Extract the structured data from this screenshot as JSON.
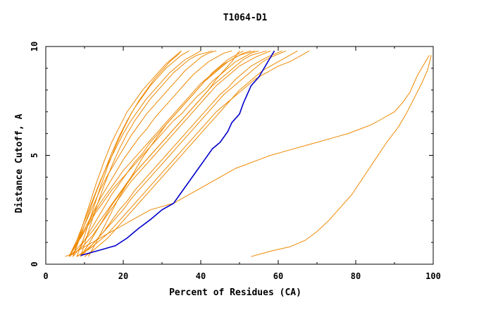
{
  "chart_data": {
    "type": "line",
    "title": "T1064-D1",
    "xlabel": "Percent of Residues (CA)",
    "ylabel": "Distance Cutoff, A",
    "xlim": [
      0,
      100
    ],
    "ylim": [
      0,
      10
    ],
    "xticks": [
      "0",
      "20",
      "40",
      "60",
      "80",
      "100"
    ],
    "yticks": [
      "0",
      "5",
      "10"
    ],
    "grid": false,
    "colors": {
      "highlight": "#0000cc",
      "models": "#ee8800"
    },
    "highlight_series": {
      "x": [
        9,
        12,
        15,
        18,
        21,
        24,
        27,
        30,
        33,
        35,
        37,
        39,
        41,
        43,
        45,
        47,
        48,
        50,
        51,
        52,
        53,
        55,
        56,
        57,
        58,
        59
      ],
      "y": [
        0.4,
        0.55,
        0.7,
        0.85,
        1.2,
        1.65,
        2.05,
        2.5,
        2.8,
        3.3,
        3.8,
        4.3,
        4.8,
        5.3,
        5.6,
        6.1,
        6.5,
        6.9,
        7.4,
        7.8,
        8.2,
        8.6,
        8.9,
        9.2,
        9.5,
        9.8
      ]
    },
    "model_series": [
      {
        "x": [
          6,
          8,
          10,
          12,
          14,
          16,
          18,
          20,
          22,
          24,
          26,
          28,
          30,
          32,
          34,
          36,
          38,
          40,
          42,
          44,
          46,
          48,
          50,
          52,
          54,
          56,
          58
        ],
        "y": [
          0.35,
          0.6,
          0.9,
          1.3,
          1.8,
          2.3,
          2.8,
          3.3,
          3.8,
          4.2,
          4.6,
          5.0,
          5.4,
          5.8,
          6.2,
          6.6,
          7.0,
          7.4,
          7.8,
          8.2,
          8.5,
          8.8,
          9.1,
          9.3,
          9.5,
          9.65,
          9.8
        ]
      },
      {
        "x": [
          6,
          7,
          9,
          11,
          13,
          15,
          17,
          19,
          21,
          23,
          25,
          27,
          29,
          31,
          33,
          35,
          37,
          39,
          41,
          43,
          45,
          47,
          49,
          51,
          53,
          55
        ],
        "y": [
          0.35,
          0.7,
          1.2,
          1.8,
          2.4,
          2.9,
          3.4,
          3.8,
          4.2,
          4.6,
          5.0,
          5.4,
          5.8,
          6.2,
          6.6,
          6.9,
          7.3,
          7.7,
          8.0,
          8.4,
          8.7,
          9.0,
          9.3,
          9.5,
          9.7,
          9.8
        ]
      },
      {
        "x": [
          7,
          9,
          11,
          13,
          15,
          17,
          19,
          21,
          23,
          25,
          27,
          29,
          31,
          33,
          35,
          37,
          39,
          41,
          43,
          45,
          47,
          49,
          51
        ],
        "y": [
          0.35,
          0.8,
          1.4,
          2.0,
          2.6,
          3.2,
          3.7,
          4.2,
          4.7,
          5.1,
          5.6,
          6.0,
          6.4,
          6.8,
          7.2,
          7.6,
          8.0,
          8.4,
          8.8,
          9.1,
          9.4,
          9.6,
          9.8
        ]
      },
      {
        "x": [
          6,
          8,
          10,
          12,
          14,
          16,
          18,
          20,
          22,
          24,
          26,
          28,
          30,
          32,
          34,
          36,
          38,
          40,
          42,
          44,
          46,
          48
        ],
        "y": [
          0.35,
          0.9,
          1.6,
          2.3,
          3.0,
          3.6,
          4.2,
          4.8,
          5.3,
          5.8,
          6.2,
          6.7,
          7.1,
          7.5,
          7.9,
          8.3,
          8.7,
          9.0,
          9.3,
          9.5,
          9.7,
          9.8
        ]
      },
      {
        "x": [
          6,
          8,
          10,
          12,
          14,
          16,
          18,
          20,
          22,
          24,
          26,
          28,
          30,
          32,
          34,
          36,
          38,
          40,
          42,
          44
        ],
        "y": [
          0.35,
          1.0,
          1.8,
          2.6,
          3.4,
          4.1,
          4.7,
          5.3,
          5.9,
          6.4,
          6.9,
          7.3,
          7.7,
          8.1,
          8.5,
          8.9,
          9.2,
          9.5,
          9.7,
          9.8
        ]
      },
      {
        "x": [
          6,
          8,
          10,
          12,
          14,
          16,
          18,
          20,
          22,
          24,
          26,
          28,
          30,
          32,
          34,
          36,
          38,
          40
        ],
        "y": [
          0.35,
          1.1,
          2.0,
          2.9,
          3.8,
          4.6,
          5.3,
          6.0,
          6.6,
          7.1,
          7.6,
          8.0,
          8.4,
          8.8,
          9.1,
          9.4,
          9.6,
          9.8
        ]
      },
      {
        "x": [
          7,
          9,
          11,
          13,
          15,
          17,
          19,
          21,
          23,
          25,
          27,
          29,
          31,
          33,
          35,
          37
        ],
        "y": [
          0.35,
          1.3,
          2.3,
          3.3,
          4.2,
          5.1,
          5.9,
          6.6,
          7.2,
          7.7,
          8.2,
          8.6,
          9.0,
          9.3,
          9.6,
          9.8
        ]
      },
      {
        "x": [
          8,
          10,
          12,
          14,
          16,
          18,
          20,
          22,
          24,
          26,
          28,
          30,
          32,
          34,
          35
        ],
        "y": [
          0.35,
          1.3,
          2.4,
          3.5,
          4.5,
          5.4,
          6.2,
          6.9,
          7.5,
          8.0,
          8.5,
          8.9,
          9.3,
          9.6,
          9.8
        ]
      },
      {
        "x": [
          7,
          9,
          11,
          13,
          15,
          17,
          19,
          21,
          23,
          25,
          27,
          29,
          31,
          33,
          35
        ],
        "y": [
          0.35,
          1.5,
          2.6,
          3.7,
          4.7,
          5.6,
          6.3,
          7.0,
          7.5,
          8.0,
          8.4,
          8.8,
          9.2,
          9.5,
          9.8
        ]
      },
      {
        "x": [
          6,
          8,
          10,
          12,
          14,
          16,
          18,
          20,
          22,
          24,
          26,
          28,
          30,
          32,
          34,
          36,
          38,
          40,
          42,
          44,
          46,
          48,
          50
        ],
        "y": [
          0.35,
          0.7,
          1.1,
          1.5,
          2.0,
          2.5,
          3.0,
          3.5,
          4.0,
          4.4,
          4.8,
          5.2,
          5.6,
          6.0,
          6.4,
          6.8,
          7.2,
          7.6,
          8.0,
          8.5,
          8.9,
          9.3,
          9.8
        ]
      },
      {
        "x": [
          9,
          11,
          13,
          15,
          17,
          19,
          21,
          23,
          25,
          27,
          29,
          31,
          33,
          35,
          37,
          39,
          41,
          43,
          45,
          47,
          49,
          51,
          53,
          55,
          57,
          59,
          61
        ],
        "y": [
          0.35,
          0.7,
          1.1,
          1.5,
          2.0,
          2.5,
          2.9,
          3.4,
          3.8,
          4.2,
          4.6,
          5.0,
          5.4,
          5.8,
          6.2,
          6.6,
          7.0,
          7.4,
          7.8,
          8.1,
          8.5,
          8.8,
          9.1,
          9.3,
          9.5,
          9.65,
          9.8
        ]
      },
      {
        "x": [
          8,
          10,
          12,
          14,
          16,
          18,
          20,
          22,
          24,
          26,
          28,
          30,
          32,
          34,
          36,
          38,
          40,
          42,
          44,
          46,
          48,
          50,
          52,
          54,
          56,
          58,
          60,
          62
        ],
        "y": [
          0.35,
          0.6,
          0.9,
          1.3,
          1.7,
          2.1,
          2.5,
          3.0,
          3.4,
          3.8,
          4.2,
          4.6,
          5.0,
          5.4,
          5.8,
          6.2,
          6.6,
          7.0,
          7.4,
          7.8,
          8.1,
          8.4,
          8.7,
          9.0,
          9.3,
          9.5,
          9.65,
          9.8
        ]
      },
      {
        "x": [
          10,
          12,
          14,
          16,
          18,
          20,
          22,
          24,
          26,
          28,
          30,
          32,
          34,
          36,
          38,
          40,
          42,
          44,
          46,
          48,
          50,
          52,
          54,
          56,
          58,
          60,
          62,
          64,
          65
        ],
        "y": [
          0.35,
          0.6,
          0.9,
          1.2,
          1.6,
          2.0,
          2.4,
          2.8,
          3.2,
          3.6,
          4.0,
          4.4,
          4.8,
          5.2,
          5.6,
          6.0,
          6.4,
          6.8,
          7.2,
          7.6,
          8.0,
          8.3,
          8.6,
          8.9,
          9.1,
          9.3,
          9.5,
          9.7,
          9.8
        ]
      },
      {
        "x": [
          8,
          10,
          12,
          14,
          16,
          18,
          20,
          22,
          24,
          26,
          28,
          30,
          32,
          34,
          36,
          38,
          40,
          42,
          44,
          46,
          48,
          50,
          52,
          54,
          56,
          58,
          60,
          63,
          66,
          68
        ],
        "y": [
          0.35,
          0.55,
          0.8,
          1.1,
          1.4,
          1.8,
          2.2,
          2.6,
          3.0,
          3.4,
          3.8,
          4.2,
          4.6,
          5.0,
          5.4,
          5.8,
          6.2,
          6.6,
          7.0,
          7.3,
          7.6,
          7.9,
          8.2,
          8.5,
          8.7,
          8.9,
          9.1,
          9.3,
          9.6,
          9.8
        ]
      },
      {
        "x": [
          9,
          11,
          13,
          15,
          17,
          19,
          21,
          23,
          25,
          27,
          29,
          31,
          33,
          35,
          37,
          39,
          41,
          43,
          45,
          47,
          49,
          51,
          53,
          55,
          57
        ],
        "y": [
          0.35,
          0.9,
          1.5,
          2.1,
          2.7,
          3.2,
          3.7,
          4.2,
          4.6,
          5.0,
          5.4,
          5.8,
          6.2,
          6.6,
          7.0,
          7.4,
          7.8,
          8.2,
          8.5,
          8.8,
          9.1,
          9.4,
          9.6,
          9.7,
          9.8
        ]
      },
      {
        "x": [
          6,
          8,
          10,
          12,
          14,
          16,
          18,
          20,
          22,
          24,
          26,
          28,
          30,
          32,
          34,
          36,
          38,
          40,
          42,
          44,
          46,
          48,
          50,
          52,
          54
        ],
        "y": [
          0.35,
          1.0,
          1.6,
          2.2,
          2.8,
          3.3,
          3.8,
          4.3,
          4.7,
          5.1,
          5.5,
          5.9,
          6.3,
          6.7,
          7.1,
          7.5,
          7.9,
          8.3,
          8.6,
          8.9,
          9.2,
          9.4,
          9.6,
          9.7,
          9.8
        ]
      },
      {
        "x": [
          9,
          11,
          13,
          15,
          17,
          19,
          21,
          23,
          25,
          27,
          29,
          31,
          33,
          35,
          37,
          39,
          41,
          43
        ],
        "y": [
          0.35,
          1.5,
          2.6,
          3.6,
          4.5,
          5.3,
          6.0,
          6.6,
          7.1,
          7.6,
          8.0,
          8.4,
          8.8,
          9.1,
          9.4,
          9.6,
          9.7,
          9.8
        ]
      },
      {
        "x": [
          11,
          13,
          15,
          17,
          19,
          21,
          23,
          25,
          27,
          29,
          31,
          33,
          35,
          37,
          39,
          41,
          43,
          45,
          47,
          49,
          51,
          53
        ],
        "y": [
          0.35,
          1.0,
          1.7,
          2.4,
          3.1,
          3.7,
          4.3,
          4.9,
          5.4,
          5.9,
          6.4,
          6.8,
          7.2,
          7.6,
          8.0,
          8.4,
          8.7,
          9.0,
          9.3,
          9.5,
          9.7,
          9.8
        ]
      },
      {
        "x": [
          53,
          58,
          63,
          67,
          70,
          73,
          76,
          79,
          82,
          85,
          88,
          91,
          93,
          95,
          97,
          98.5,
          99.5
        ],
        "y": [
          0.35,
          0.6,
          0.8,
          1.1,
          1.5,
          2.0,
          2.6,
          3.2,
          4.0,
          4.8,
          5.6,
          6.3,
          6.9,
          7.6,
          8.3,
          8.9,
          9.6
        ]
      },
      {
        "x": [
          5,
          7,
          9,
          11,
          13,
          15,
          17,
          19,
          21,
          23,
          25,
          27,
          29,
          31,
          33,
          35,
          37,
          40,
          43,
          46,
          49,
          52,
          55,
          58,
          62,
          66,
          70,
          74,
          78,
          81,
          84,
          87,
          90,
          92,
          94,
          95,
          96,
          97,
          98,
          99
        ],
        "y": [
          0.35,
          0.5,
          0.7,
          0.9,
          1.1,
          1.3,
          1.5,
          1.7,
          1.9,
          2.1,
          2.3,
          2.5,
          2.6,
          2.7,
          2.8,
          3.0,
          3.2,
          3.5,
          3.8,
          4.1,
          4.4,
          4.6,
          4.8,
          5.0,
          5.2,
          5.4,
          5.6,
          5.8,
          6.0,
          6.2,
          6.4,
          6.7,
          7.0,
          7.4,
          7.9,
          8.3,
          8.7,
          9.0,
          9.3,
          9.6
        ]
      },
      {
        "x": [
          100,
          100,
          100,
          100,
          100,
          100,
          100,
          100,
          100
        ],
        "y": [
          5.0,
          5.6,
          6.2,
          6.8,
          7.4,
          8.0,
          8.6,
          9.2,
          9.8
        ]
      }
    ]
  }
}
